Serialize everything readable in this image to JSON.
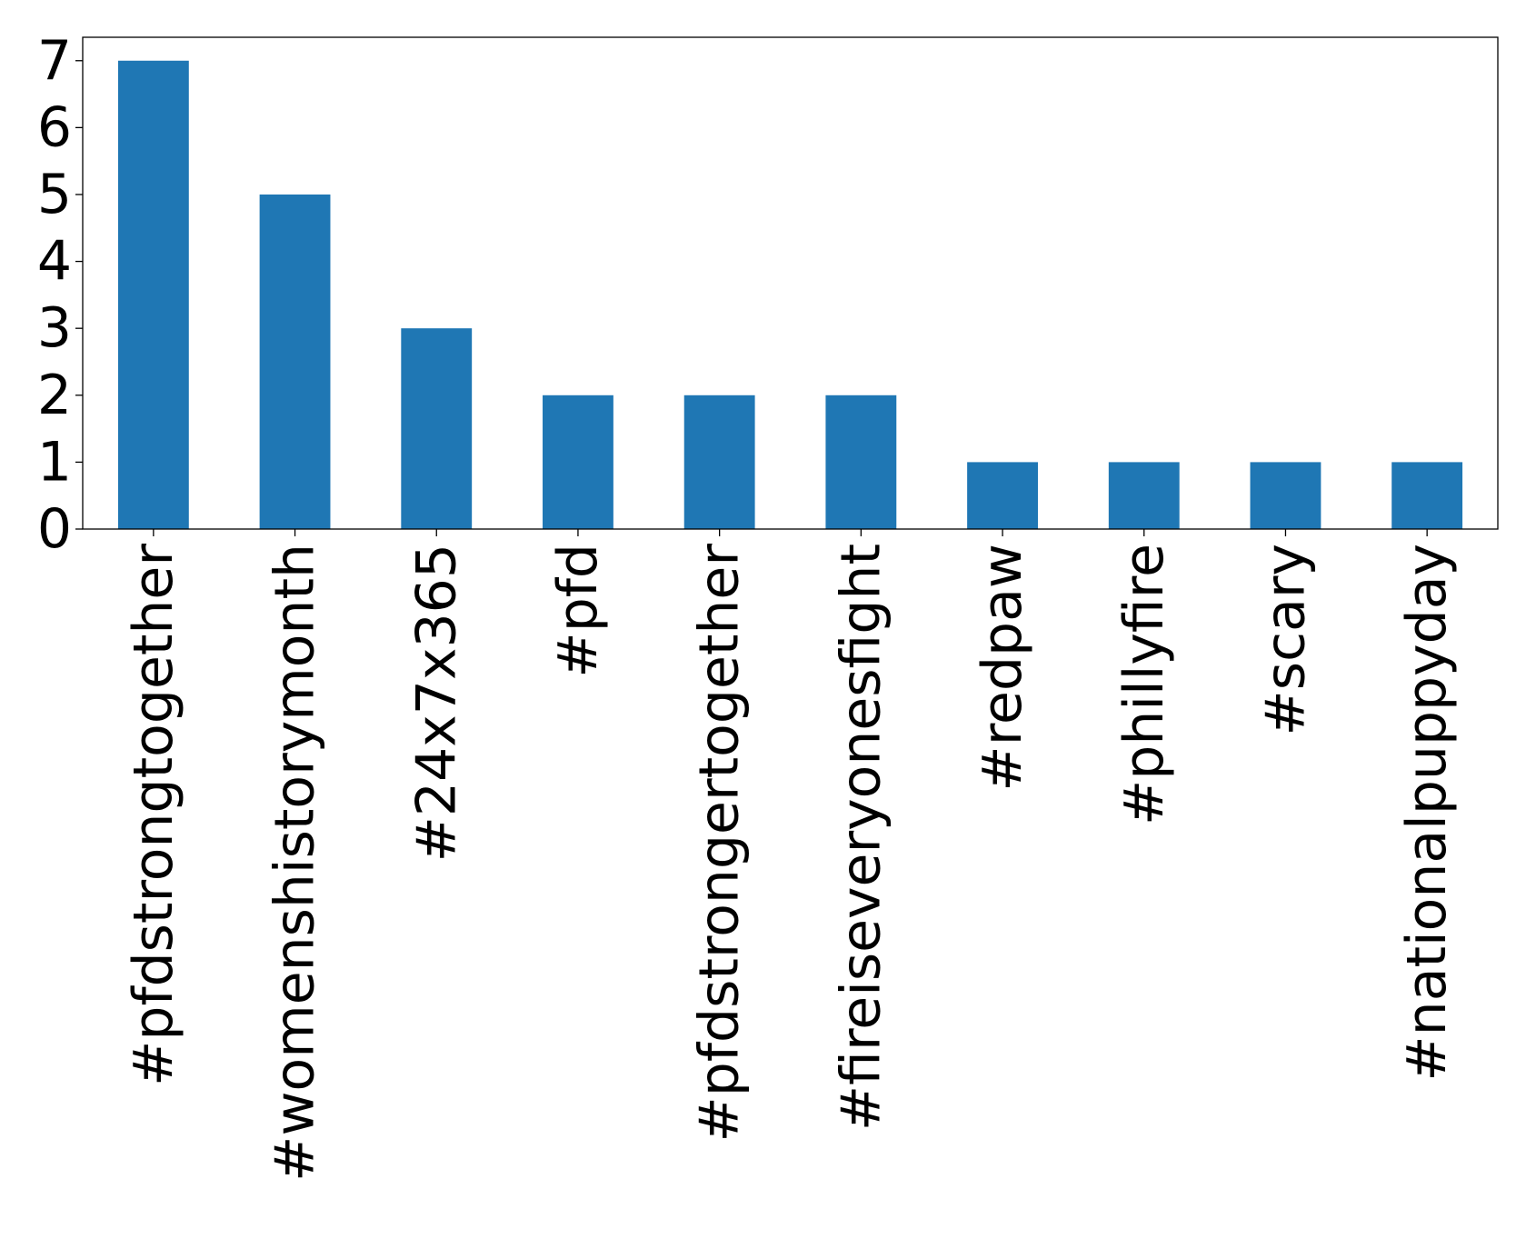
{
  "chart_data": {
    "type": "bar",
    "categories": [
      "#pfdstrongtogether",
      "#womenshistorymonth",
      "#24x7x365",
      "#pfd",
      "#pfdstrongertogether",
      "#fireiseveryonesfight",
      "#redpaw",
      "#phillyfire",
      "#scary",
      "#nationalpuppyday"
    ],
    "values": [
      7,
      5,
      3,
      2,
      2,
      2,
      1,
      1,
      1,
      1
    ],
    "yticks": [
      0,
      1,
      2,
      3,
      4,
      5,
      6,
      7
    ],
    "ylim": [
      0,
      7.35
    ],
    "grid": false,
    "legend": "none",
    "colors": {
      "bar": "#1f77b4",
      "axis": "#000000",
      "background": "#ffffff"
    }
  }
}
